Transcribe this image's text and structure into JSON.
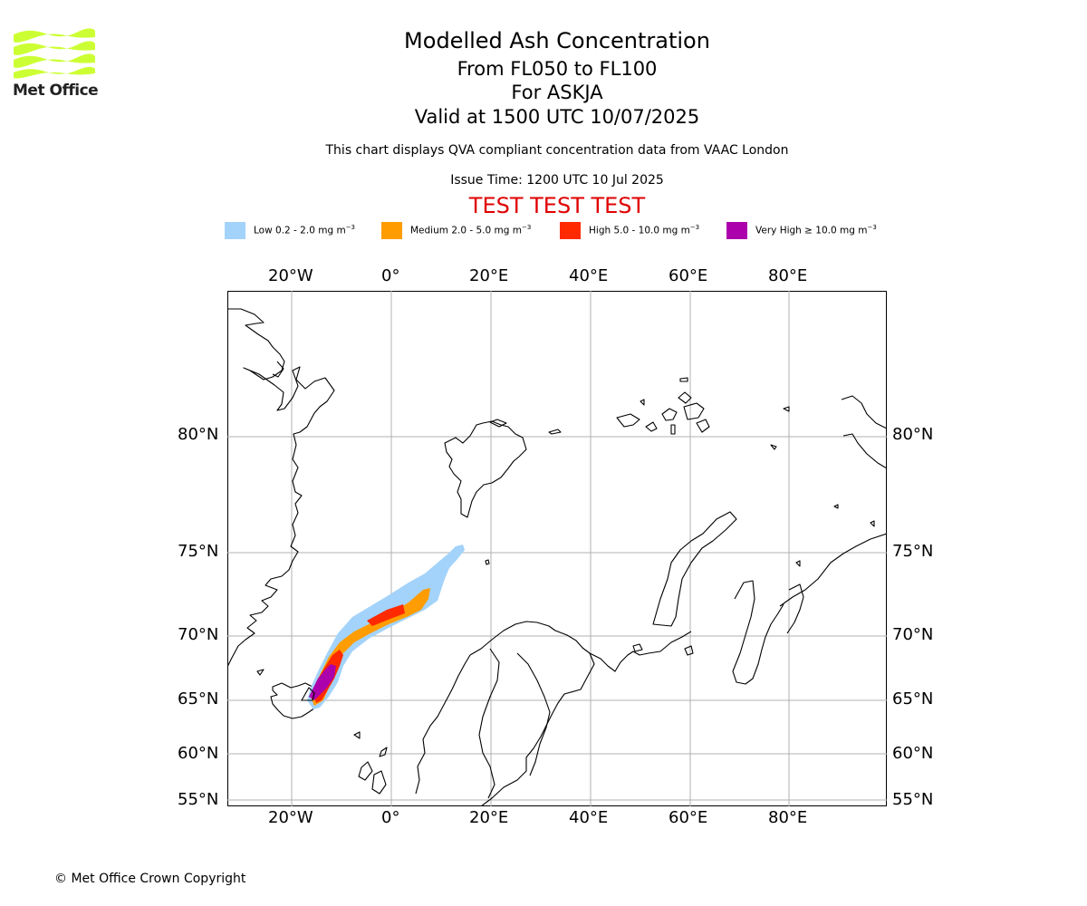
{
  "logo": {
    "text": "Met Office",
    "color": "#ccff33"
  },
  "title": {
    "line1": "Modelled Ash Concentration",
    "line2": "From FL050 to FL100",
    "line3": "For ASKJA",
    "line4": "Valid at 1500 UTC 10/07/2025"
  },
  "subtitle": "This chart displays QVA compliant concentration data from VAAC London",
  "issue_time": "Issue Time: 1200 UTC 10 Jul 2025",
  "test_banner": "TEST TEST TEST",
  "legend": [
    {
      "label": "Low 0.2 - 2.0 mg m",
      "exp": "−3",
      "color": "#a3d3fa"
    },
    {
      "label": "Medium 2.0 - 5.0 mg m",
      "exp": "−3",
      "color": "#ff9c00"
    },
    {
      "label": "High 5.0 - 10.0 mg m",
      "exp": "−3",
      "color": "#ff2a00"
    },
    {
      "label": "Very High  ≥  10.0 mg m",
      "exp": "−3",
      "color": "#ab00ab"
    }
  ],
  "axes": {
    "lon_labels": [
      "20°W",
      "0°",
      "20°E",
      "40°E",
      "60°E",
      "80°E"
    ],
    "lat_labels": [
      "80°N",
      "75°N",
      "70°N",
      "65°N",
      "60°N",
      "55°N"
    ]
  },
  "map": {
    "volcano": "ASKJA",
    "grid": true
  },
  "copyright": "© Met Office Crown Copyright"
}
